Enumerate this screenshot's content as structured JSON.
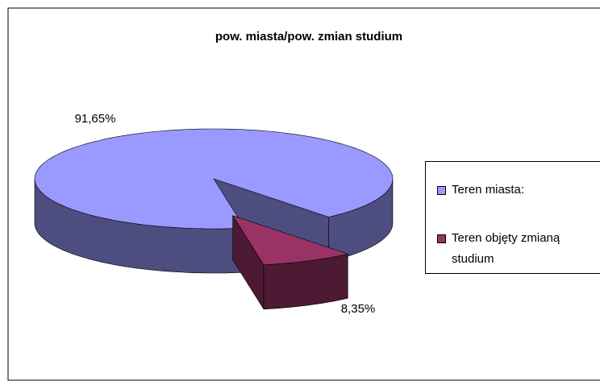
{
  "chart_data": {
    "type": "pie3d",
    "title": "pow. miasta/pow. zmian studium",
    "categories": [
      "Teren miasta:",
      "Teren objęty zmianą studium"
    ],
    "values": [
      91.65,
      8.35
    ],
    "value_labels": [
      "91,65%",
      "8,35%"
    ],
    "colors": [
      "#9999ff",
      "#993366"
    ],
    "legend": "right"
  }
}
